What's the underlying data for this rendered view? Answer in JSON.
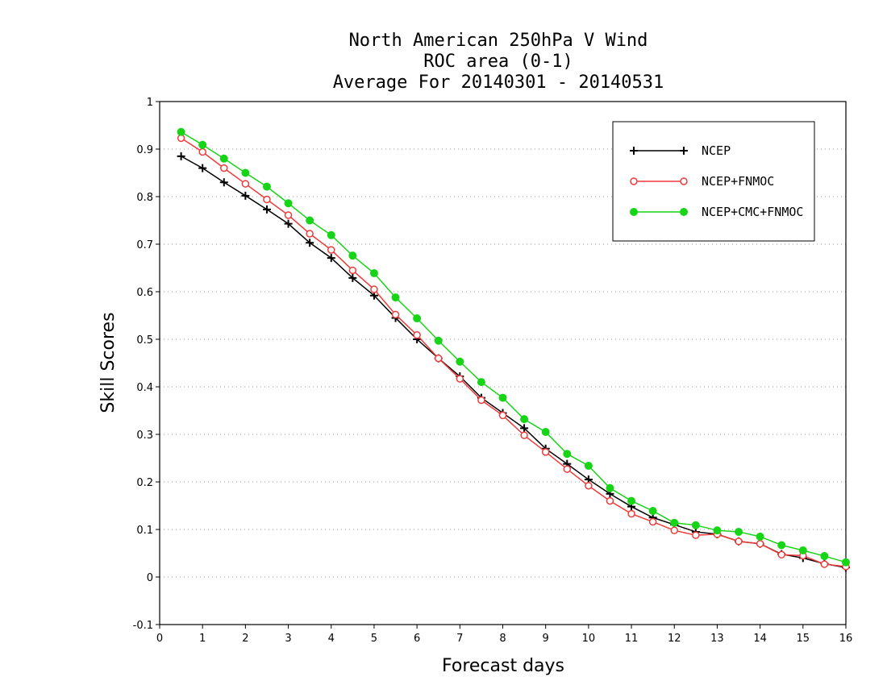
{
  "chart_data": {
    "type": "line",
    "title": [
      "North American 250hPa V Wind",
      "ROC area (0-1)",
      "Average For 20140301 - 20140531"
    ],
    "xlabel": "Forecast days",
    "ylabel": "Skill Scores",
    "xlim": [
      0,
      16
    ],
    "ylim": [
      -0.1,
      1
    ],
    "xticks": [
      "0",
      "1",
      "2",
      "3",
      "4",
      "5",
      "6",
      "7",
      "8",
      "9",
      "10",
      "11",
      "12",
      "13",
      "14",
      "15",
      "16"
    ],
    "yticks": [
      "-0.1",
      "0",
      "0.1",
      "0.2",
      "0.3",
      "0.4",
      "0.5",
      "0.6",
      "0.7",
      "0.8",
      "0.9",
      "1"
    ],
    "grid": "horizontal dotted",
    "legend_position": "top-right",
    "x": [
      0.5,
      1,
      1.5,
      2,
      2.5,
      3,
      3.5,
      4,
      4.5,
      5,
      5.5,
      6,
      6.5,
      7,
      7.5,
      8,
      8.5,
      9,
      9.5,
      10,
      10.5,
      11,
      11.5,
      12,
      12.5,
      13,
      13.5,
      14,
      14.5,
      15,
      15.5,
      16
    ],
    "series": [
      {
        "name": "NCEP",
        "color": "#000000",
        "marker": "plus",
        "values": [
          0.885,
          0.86,
          0.83,
          0.802,
          0.773,
          0.743,
          0.703,
          0.671,
          0.629,
          0.592,
          0.545,
          0.5,
          0.46,
          0.422,
          0.377,
          0.345,
          0.313,
          0.27,
          0.238,
          0.205,
          0.175,
          0.148,
          0.125,
          0.11,
          0.095,
          0.09,
          0.075,
          0.07,
          0.048,
          0.04,
          0.028,
          0.02
        ]
      },
      {
        "name": "NCEP+FNMOC",
        "color": "#f03a3a",
        "marker": "open-circle",
        "values": [
          0.923,
          0.894,
          0.86,
          0.827,
          0.794,
          0.761,
          0.722,
          0.688,
          0.645,
          0.605,
          0.552,
          0.509,
          0.46,
          0.417,
          0.372,
          0.34,
          0.298,
          0.263,
          0.227,
          0.192,
          0.16,
          0.133,
          0.116,
          0.098,
          0.088,
          0.09,
          0.075,
          0.07,
          0.047,
          0.045,
          0.027,
          0.022
        ]
      },
      {
        "name": "NCEP+CMC+FNMOC",
        "color": "#17d417",
        "marker": "filled-circle",
        "values": [
          0.936,
          0.909,
          0.88,
          0.85,
          0.821,
          0.786,
          0.75,
          0.719,
          0.676,
          0.639,
          0.588,
          0.544,
          0.497,
          0.453,
          0.41,
          0.377,
          0.332,
          0.305,
          0.259,
          0.234,
          0.187,
          0.16,
          0.139,
          0.114,
          0.109,
          0.098,
          0.095,
          0.085,
          0.067,
          0.056,
          0.044,
          0.031
        ]
      }
    ]
  }
}
